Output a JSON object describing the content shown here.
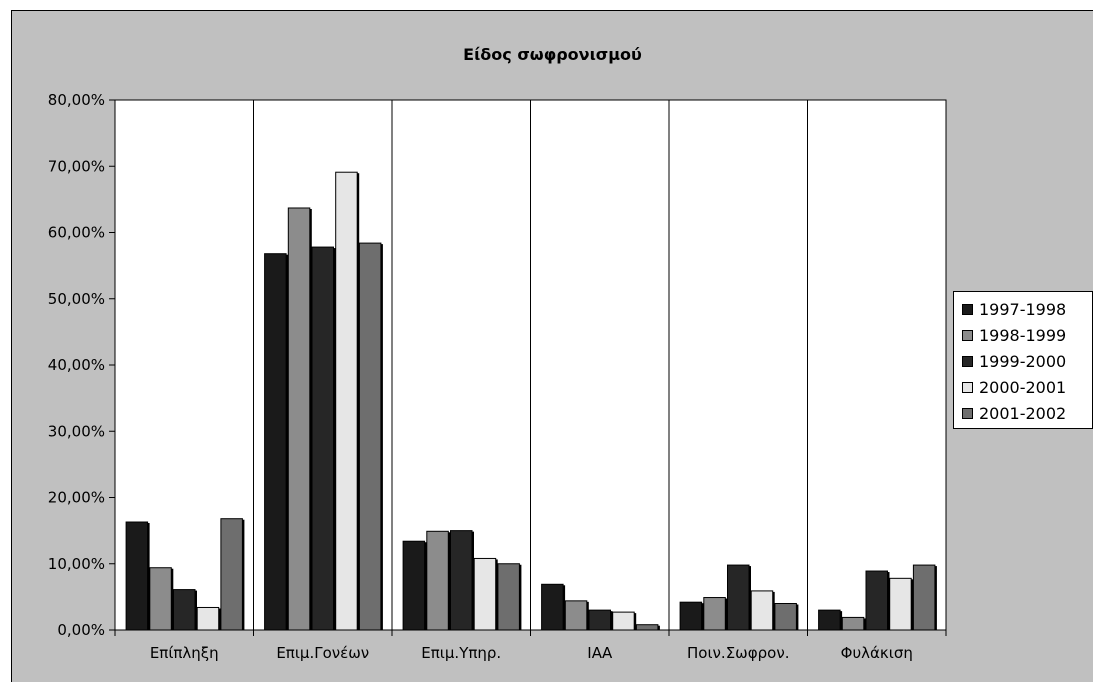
{
  "chart_data": {
    "type": "bar",
    "title": "Είδος σωφρονισμού",
    "categories": [
      "Επίπληξη",
      "Επιμ.Γονέων",
      "Επιμ.Υπηρ.",
      "ΙΑΑ",
      "Ποιν.Σωφρον.",
      "Φυλάκιση"
    ],
    "series": [
      {
        "name": "1997-1998",
        "color": "#1a1a1a",
        "values": [
          16.3,
          56.8,
          13.4,
          6.9,
          4.2,
          3.0
        ]
      },
      {
        "name": "1998-1999",
        "color": "#8c8c8c",
        "values": [
          9.4,
          63.7,
          14.9,
          4.4,
          4.9,
          1.9
        ]
      },
      {
        "name": "1999-2000",
        "color": "#262626",
        "values": [
          6.1,
          57.8,
          15.0,
          3.0,
          9.8,
          8.9
        ]
      },
      {
        "name": "2000-2001",
        "color": "#e6e6e6",
        "values": [
          3.4,
          69.1,
          10.8,
          2.7,
          5.9,
          7.8
        ]
      },
      {
        "name": "2001-2002",
        "color": "#6e6e6e",
        "values": [
          16.8,
          58.4,
          10.0,
          0.8,
          4.0,
          9.8
        ]
      }
    ],
    "ylim": [
      0,
      80
    ],
    "yticks": [
      "0,00%",
      "10,00%",
      "20,00%",
      "30,00%",
      "40,00%",
      "50,00%",
      "60,00%",
      "70,00%",
      "80,00%"
    ],
    "grid": false,
    "legend_position": "right",
    "plot_background": "#ffffff",
    "chart_background": "#c0c0c0"
  }
}
